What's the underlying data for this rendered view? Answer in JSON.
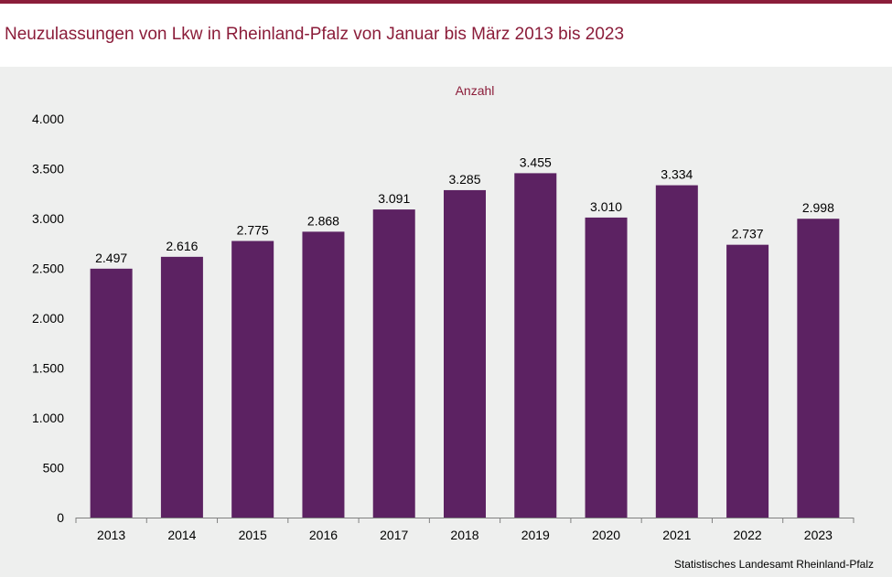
{
  "title": "Neuzulassungen von Lkw in Rheinland-Pfalz von Januar bis März 2013 bis 2023",
  "source": "Statistisches Landesamt Rheinland-Pfalz",
  "colors": {
    "bar": "#5c2262",
    "title": "#8b1d3a",
    "unit_label": "#8b1d3a",
    "background": "#eeefee"
  },
  "chart_data": {
    "type": "bar",
    "title": "Neuzulassungen von Lkw in Rheinland-Pfalz von Januar bis März 2013 bis 2023",
    "ylabel": "Anzahl",
    "xlabel": "",
    "ylim": [
      0,
      4000
    ],
    "yticks": [
      0,
      500,
      1000,
      1500,
      2000,
      2500,
      3000,
      3500,
      4000
    ],
    "ytick_labels": [
      "0",
      "500",
      "1.000",
      "1.500",
      "2.000",
      "2.500",
      "3.000",
      "3.500",
      "4.000"
    ],
    "categories": [
      "2013",
      "2014",
      "2015",
      "2016",
      "2017",
      "2018",
      "2019",
      "2020",
      "2021",
      "2022",
      "2023"
    ],
    "values": [
      2497,
      2616,
      2775,
      2868,
      3091,
      3285,
      3455,
      3010,
      3334,
      2737,
      2998
    ],
    "value_labels": [
      "2.497",
      "2.616",
      "2.775",
      "2.868",
      "3.091",
      "3.285",
      "3.455",
      "3.010",
      "3.334",
      "2.737",
      "2.998"
    ],
    "grid": false,
    "legend": "none"
  }
}
